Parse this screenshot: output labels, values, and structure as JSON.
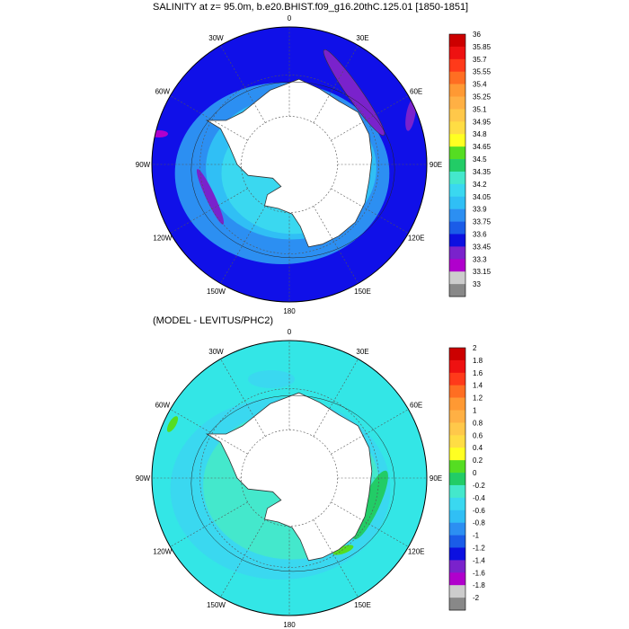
{
  "panels": [
    {
      "title": "SALINITY at z=  95.0m, b.e20.BHIST.f09_g16.20thC.125.01 [1850-1851]",
      "map": {
        "longitude_labels": [
          "0",
          "30E",
          "60E",
          "90E",
          "120E",
          "150E",
          "180",
          "150W",
          "120W",
          "90W",
          "60W",
          "30W"
        ],
        "background_color": "#1010e8"
      },
      "colorbar": {
        "levels": [
          "36",
          "35.85",
          "35.7",
          "35.55",
          "35.4",
          "35.25",
          "35.1",
          "34.95",
          "34.8",
          "34.65",
          "34.5",
          "34.35",
          "34.2",
          "34.05",
          "33.9",
          "33.75",
          "33.6",
          "33.45",
          "33.3",
          "33.15",
          "33"
        ],
        "colors": [
          "#cc0000",
          "#ee1111",
          "#ff3a1a",
          "#ff6e22",
          "#ff9933",
          "#ffb044",
          "#ffc84a",
          "#ffdd44",
          "#ffff22",
          "#55dd22",
          "#22cc66",
          "#44e8cc",
          "#3ad8f0",
          "#30bff5",
          "#2c8ff2",
          "#1a5ce8",
          "#0c10e0",
          "#7a22cc",
          "#b000cc",
          "#cccccc",
          "#888888"
        ]
      }
    },
    {
      "title": "(MODEL - LEVITUS/PHC2)",
      "map": {
        "longitude_labels": [
          "0",
          "30E",
          "60E",
          "90E",
          "120E",
          "150E",
          "180",
          "150W",
          "120W",
          "90W",
          "60W",
          "30W"
        ],
        "background_color": "#33e6e6"
      },
      "colorbar": {
        "levels": [
          "2",
          "1.8",
          "1.6",
          "1.4",
          "1.2",
          "1",
          "0.8",
          "0.6",
          "0.4",
          "0.2",
          "0",
          "-0.2",
          "-0.4",
          "-0.6",
          "-0.8",
          "-1",
          "-1.2",
          "-1.4",
          "-1.6",
          "-1.8",
          "-2"
        ],
        "colors": [
          "#cc0000",
          "#ee1111",
          "#ff3a1a",
          "#ff6e22",
          "#ff9933",
          "#ffb044",
          "#ffc84a",
          "#ffdd44",
          "#ffff22",
          "#55dd22",
          "#22cc66",
          "#44e8cc",
          "#3ad8f0",
          "#30bff5",
          "#2c8ff2",
          "#1a5ce8",
          "#0c10e0",
          "#7a22cc",
          "#b000cc",
          "#cccccc",
          "#888888"
        ]
      }
    }
  ]
}
